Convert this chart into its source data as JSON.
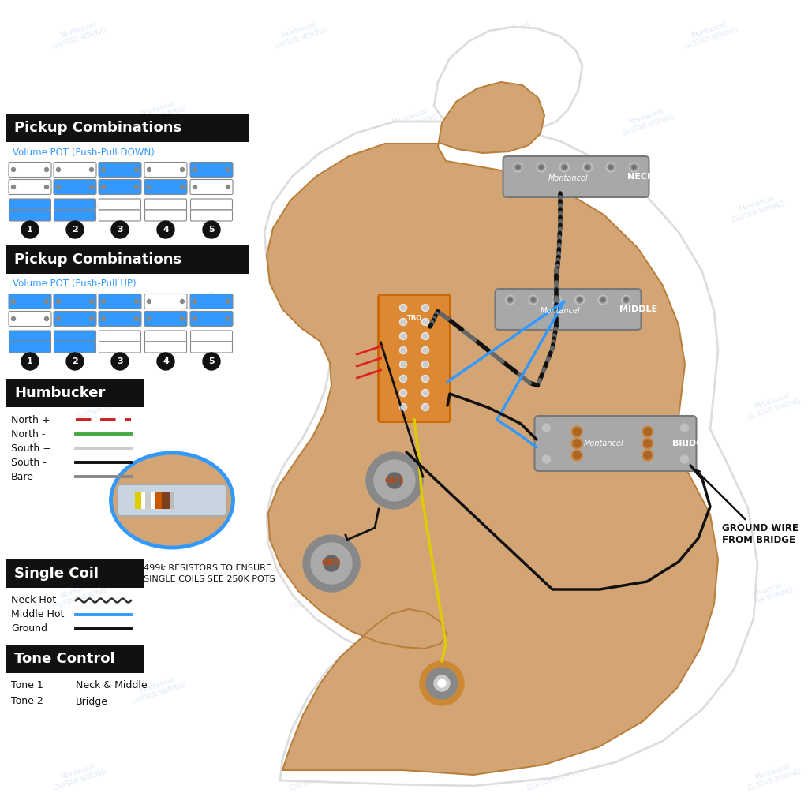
{
  "bg_color": "#ffffff",
  "pickguard_color": "#D4A574",
  "body_outline_color": "#e8e8e8",
  "pickup_color": "#AAAAAA",
  "pickup_edge": "#888888",
  "title1": "Pickup Combinations",
  "subtitle1": "Volume POT (Push-Pull DOWN)",
  "title2": "Pickup Combinations",
  "subtitle2": "Volume POT (Push-Pull UP)",
  "humbucker_title": "Humbucker",
  "humbucker_entries": [
    {
      "label": "North +",
      "color": "#cc2222"
    },
    {
      "label": "North -",
      "color": "#44aa44"
    },
    {
      "label": "South +",
      "color": "#cccccc"
    },
    {
      "label": "South -",
      "color": "#111111"
    },
    {
      "label": "Bare",
      "color": "#888888"
    }
  ],
  "singlecoil_title": "Single Coil",
  "singlecoil_note": "499k RESISTORS TO ENSURE\nSINGLE COILS SEE 250K POTS",
  "singlecoil_entries": [
    {
      "label": "Neck Hot",
      "color": "#333333",
      "style": "wavy"
    },
    {
      "label": "Middle Hot",
      "color": "#3399ff",
      "style": "solid"
    },
    {
      "label": "Ground",
      "color": "#111111",
      "style": "solid"
    }
  ],
  "tone_title": "Tone Control",
  "tone_entries": [
    {
      "label": "Tone 1",
      "value": "Neck & Middle"
    },
    {
      "label": "Tone 2",
      "value": "Bridge"
    }
  ],
  "watermark_color": "#c8d8ec",
  "ground_wire_label": "GROUND WIRE\nFROM BRIDGE",
  "down_configs": [
    {
      "s1": false,
      "s2": false,
      "h1": true,
      "h2": true
    },
    {
      "s1": false,
      "s2": true,
      "h1": true,
      "h2": true
    },
    {
      "s1": true,
      "s2": true,
      "h1": false,
      "h2": false
    },
    {
      "s1": false,
      "s2": true,
      "h1": false,
      "h2": false
    },
    {
      "s1": true,
      "s2": false,
      "h1": false,
      "h2": false
    }
  ],
  "up_configs": [
    {
      "s1": true,
      "s2": false,
      "h1": true,
      "h2": true
    },
    {
      "s1": true,
      "s2": true,
      "h1": true,
      "h2": true
    },
    {
      "s1": true,
      "s2": true,
      "h1": false,
      "h2": false
    },
    {
      "s1": false,
      "s2": true,
      "h1": false,
      "h2": false
    },
    {
      "s1": true,
      "s2": true,
      "h1": false,
      "h2": false
    }
  ]
}
